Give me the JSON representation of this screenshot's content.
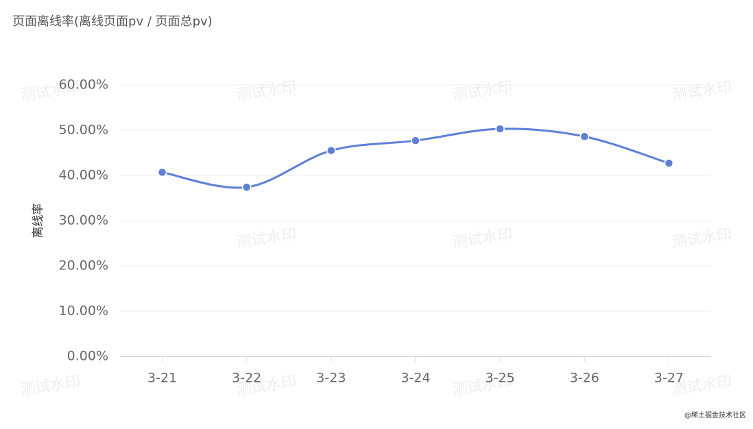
{
  "chart_data": {
    "type": "line",
    "title": "页面离线率(离线页面pv / 页面总pv)",
    "y_label": "离线率",
    "categories": [
      "3-21",
      "3-22",
      "3-23",
      "3-24",
      "3-25",
      "3-26",
      "3-27"
    ],
    "series": [
      {
        "name": "离线率",
        "color": "#5b7fdb",
        "values": [
          40.7,
          37.4,
          45.5,
          47.7,
          50.3,
          48.6,
          42.7
        ]
      }
    ],
    "ylim": [
      0,
      60
    ],
    "yticks": [
      {
        "value": 0,
        "label": "0.00%"
      },
      {
        "value": 10,
        "label": "10.00%"
      },
      {
        "value": 20,
        "label": "20.00%"
      },
      {
        "value": 30,
        "label": "30.00%"
      },
      {
        "value": 40,
        "label": "40.00%"
      },
      {
        "value": 50,
        "label": "50.00%"
      },
      {
        "value": 60,
        "label": "60.00%"
      }
    ],
    "grid": true,
    "smooth": true,
    "watermark": "测试水印",
    "credit": "@稀土掘金技术社区"
  }
}
